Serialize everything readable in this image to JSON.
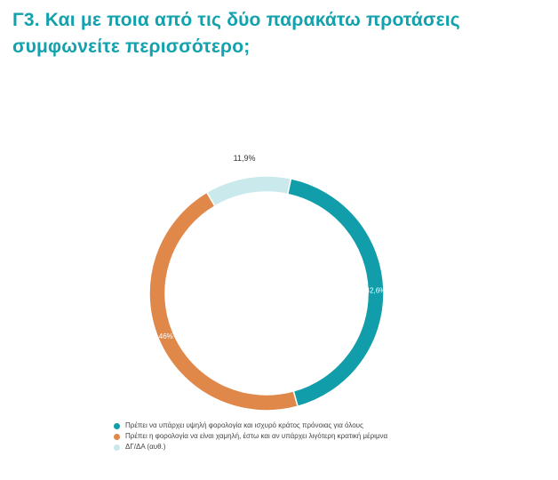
{
  "title_lines": [
    "Γ3. Και με ποια από τις δύο παρακάτω προτάσεις",
    "συμφωνείτε περισσότερο;"
  ],
  "colors": {
    "title": "#12a2ad",
    "series": [
      "#119daa",
      "#e0884a",
      "#c9e9ec"
    ],
    "label_inside": "#ffffff",
    "label_outside": "#333333"
  },
  "chart_data": {
    "type": "pie",
    "style": "donut",
    "title": "Γ3. Και με ποια από τις δύο παρακάτω προτάσεις συμφωνείτε περισσότερο;",
    "categories": [
      "Πρέπει να υπάρχει υψηλή φορολογία και ισχυρό κράτος πρόνοιας για όλους",
      "Πρέπει η φορολογία να είναι χαμηλή, έστω και αν υπάρχει λιγότερη κρατική μέριμνα",
      "ΔΓ/ΔΑ (αυθ.)"
    ],
    "values": [
      42.6,
      46,
      11.9
    ],
    "data_labels": [
      "42,6%",
      "46%",
      "11,9%"
    ],
    "legend_position": "bottom-left"
  }
}
